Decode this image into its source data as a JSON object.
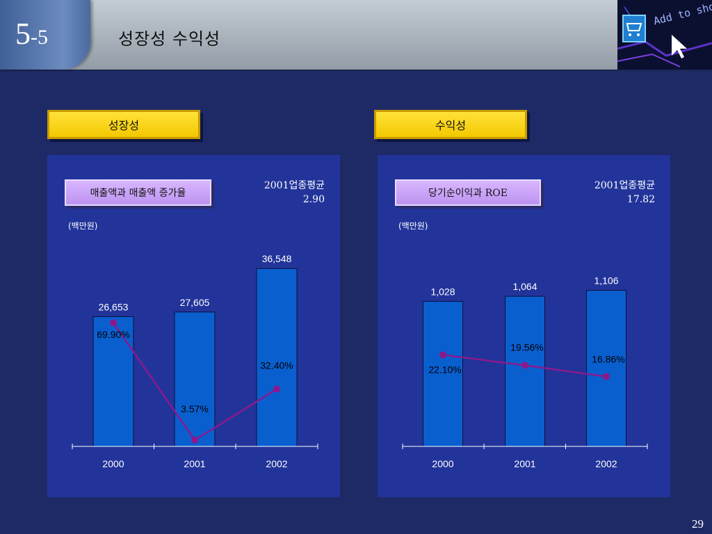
{
  "header": {
    "section_number_major": "5",
    "section_number_minor": "-5",
    "title": "성장성  수익성",
    "photo_text": "Add to shoppi"
  },
  "sections": {
    "left_label": "성장성",
    "right_label": "수익성"
  },
  "page_number": "29",
  "colors": {
    "bar": "#0a5fcf",
    "line": "#8a1a8c",
    "panel": "#22349a",
    "background": "#1d2a66"
  },
  "chart_data": [
    {
      "type": "bar",
      "title": "매출액과 매출액 증가율",
      "unit": "(백만원)",
      "industry_avg_label": "2001업종평균",
      "industry_avg_value": "2.90",
      "categories": [
        "2000",
        "2001",
        "2002"
      ],
      "series": [
        {
          "values": [
            26653,
            27605,
            36548
          ],
          "labels": [
            "26,653",
            "27,605",
            "36,548"
          ]
        },
        {
          "type": "line",
          "values": [
            69.9,
            3.57,
            32.4
          ],
          "labels": [
            "69.90%",
            "3.57%",
            "32.40%"
          ]
        }
      ],
      "ylim": [
        0,
        40000
      ],
      "line_ylim": [
        0,
        110
      ],
      "grid": false,
      "legend": "none"
    },
    {
      "type": "bar",
      "title": "당기순이익과 ROE",
      "unit": "(백만원)",
      "industry_avg_label": "2001업종평균",
      "industry_avg_value": "17.82",
      "categories": [
        "2000",
        "2001",
        "2002"
      ],
      "series": [
        {
          "values": [
            1028,
            1064,
            1106
          ],
          "labels": [
            "1,028",
            "1,064",
            "1,106"
          ]
        },
        {
          "type": "line",
          "values": [
            22.1,
            19.56,
            16.86
          ],
          "labels": [
            "22.10%",
            "19.56%",
            "16.86%"
          ]
        }
      ],
      "ylim": [
        0,
        1380
      ],
      "line_ylim": [
        0,
        47
      ],
      "grid": false,
      "legend": "none"
    }
  ]
}
